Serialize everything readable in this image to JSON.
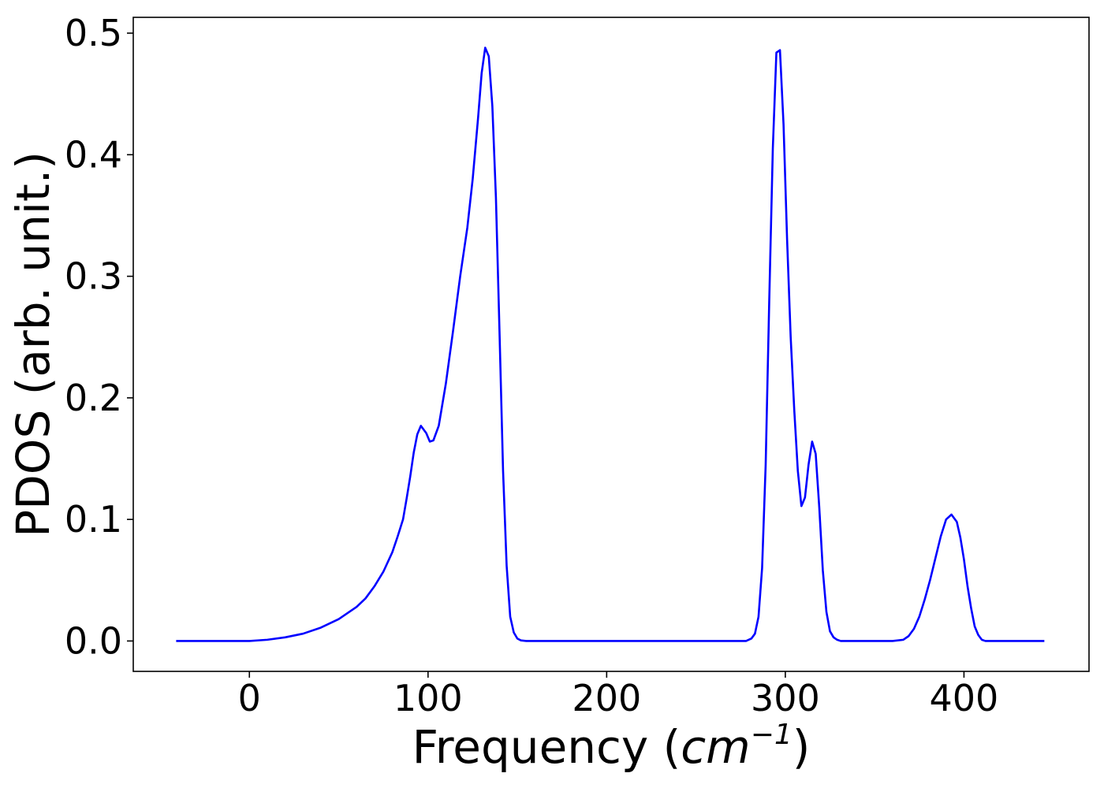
{
  "chart_data": {
    "type": "line",
    "title": "",
    "xlabel": {
      "prefix": "Frequency (",
      "unit_base": "cm",
      "unit_exp": "−1",
      "suffix": ")"
    },
    "ylabel": "PDOS (arb. unit.)",
    "xlim": [
      -65,
      470
    ],
    "ylim": [
      -0.025,
      0.513
    ],
    "xticks": [
      0,
      100,
      200,
      300,
      400
    ],
    "xtick_labels": [
      "0",
      "100",
      "200",
      "300",
      "400"
    ],
    "yticks": [
      0.0,
      0.1,
      0.2,
      0.3,
      0.4,
      0.5
    ],
    "ytick_labels": [
      "0.0",
      "0.1",
      "0.2",
      "0.3",
      "0.4",
      "0.5"
    ],
    "grid": false,
    "series": [
      {
        "color": "#0000ff",
        "x": [
          -41,
          0,
          10,
          20,
          30,
          40,
          50,
          60,
          65,
          70,
          75,
          80,
          83,
          86,
          88,
          90,
          92,
          94,
          96,
          99,
          101,
          103,
          106,
          110,
          114,
          118,
          122,
          125,
          128,
          130,
          132,
          134,
          136,
          138,
          140,
          142,
          144,
          146,
          148,
          150,
          152,
          155,
          160,
          200,
          250,
          278,
          281,
          283,
          285,
          287,
          289,
          291,
          293,
          295,
          297,
          299,
          301,
          303,
          305,
          307,
          309,
          311,
          313,
          315,
          317,
          319,
          321,
          323,
          325,
          327,
          329,
          331,
          333,
          335,
          337,
          340,
          360,
          366,
          369,
          372,
          375,
          378,
          381,
          384,
          387,
          390,
          393,
          396,
          398,
          400,
          402,
          404,
          406,
          408,
          410,
          412,
          415,
          420,
          445
        ],
        "y": [
          0.0,
          0.0,
          0.001,
          0.003,
          0.006,
          0.011,
          0.018,
          0.028,
          0.035,
          0.045,
          0.057,
          0.073,
          0.086,
          0.1,
          0.117,
          0.135,
          0.155,
          0.17,
          0.177,
          0.171,
          0.164,
          0.165,
          0.177,
          0.212,
          0.255,
          0.3,
          0.34,
          0.38,
          0.43,
          0.467,
          0.488,
          0.481,
          0.44,
          0.365,
          0.255,
          0.14,
          0.062,
          0.02,
          0.007,
          0.002,
          0.0005,
          0.0,
          0.0,
          0.0,
          0.0,
          0.0,
          0.002,
          0.006,
          0.02,
          0.06,
          0.145,
          0.28,
          0.405,
          0.484,
          0.486,
          0.425,
          0.33,
          0.25,
          0.19,
          0.14,
          0.111,
          0.118,
          0.145,
          0.164,
          0.154,
          0.11,
          0.058,
          0.024,
          0.008,
          0.003,
          0.001,
          0.0,
          0.0,
          0.0,
          0.0,
          0.0,
          0.0,
          0.001,
          0.004,
          0.01,
          0.02,
          0.034,
          0.05,
          0.068,
          0.086,
          0.1,
          0.104,
          0.098,
          0.085,
          0.067,
          0.045,
          0.027,
          0.012,
          0.005,
          0.001,
          0.0,
          0.0,
          0.0,
          0.0
        ]
      }
    ]
  }
}
